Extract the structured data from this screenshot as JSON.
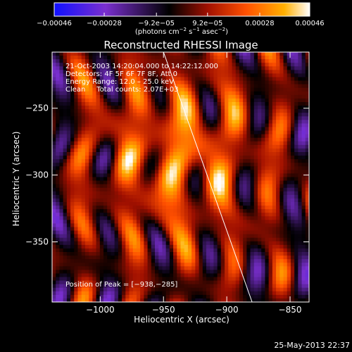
{
  "chart_data": {
    "type": "heatmap",
    "title": "Reconstructed RHESSI Image",
    "xlabel": "Heliocentric X (arcsec)",
    "ylabel": "Heliocentric Y (arcsec)",
    "xlim": [
      -1038,
      -835
    ],
    "ylim": [
      -395,
      -208
    ],
    "x_ticks": [
      -1000,
      -950,
      -900,
      -850
    ],
    "x_tick_labels": [
      "−1000",
      "−950",
      "−900",
      "−850"
    ],
    "y_ticks": [
      -250,
      -300,
      -350
    ],
    "y_tick_labels": [
      "−250",
      "−300",
      "−350"
    ],
    "colorbar": {
      "min": -0.00046,
      "max": 0.00046,
      "ticks": [
        -0.00046,
        -0.00028,
        -9.2e-05,
        9.2e-05,
        0.00028,
        0.00046
      ],
      "tick_labels": [
        "−0.00046",
        "−0.00028",
        "−9.2e−05",
        "9.2e−05",
        "0.00028",
        "0.00046"
      ],
      "unit_parts": [
        "(photons cm",
        "−2",
        " s",
        "−1",
        " asec",
        "−2",
        ")"
      ],
      "colors": [
        "#1010ff",
        "#7a2fd0",
        "#000000",
        "#a01000",
        "#ff5000",
        "#ffb000",
        "#ffffff"
      ]
    },
    "annotations": [
      "21-Oct-2003 14:20:04.000 to 14:22:12.000",
      "Detectors: 4F 5F 6F 7F 8F, Att 0",
      "Energy Range: 12.0 – 25.0 keV",
      "Clean     Total counts: 2.07E+03"
    ],
    "peak_label": "Position of Peak = [−938,−285]",
    "peak_position": [
      -938,
      -285
    ],
    "limb_line": {
      "x": [
        -950,
        -880
      ],
      "y": [
        -208,
        -395
      ]
    }
  },
  "footer": {
    "timestamp": "25-May-2013 22:37"
  }
}
